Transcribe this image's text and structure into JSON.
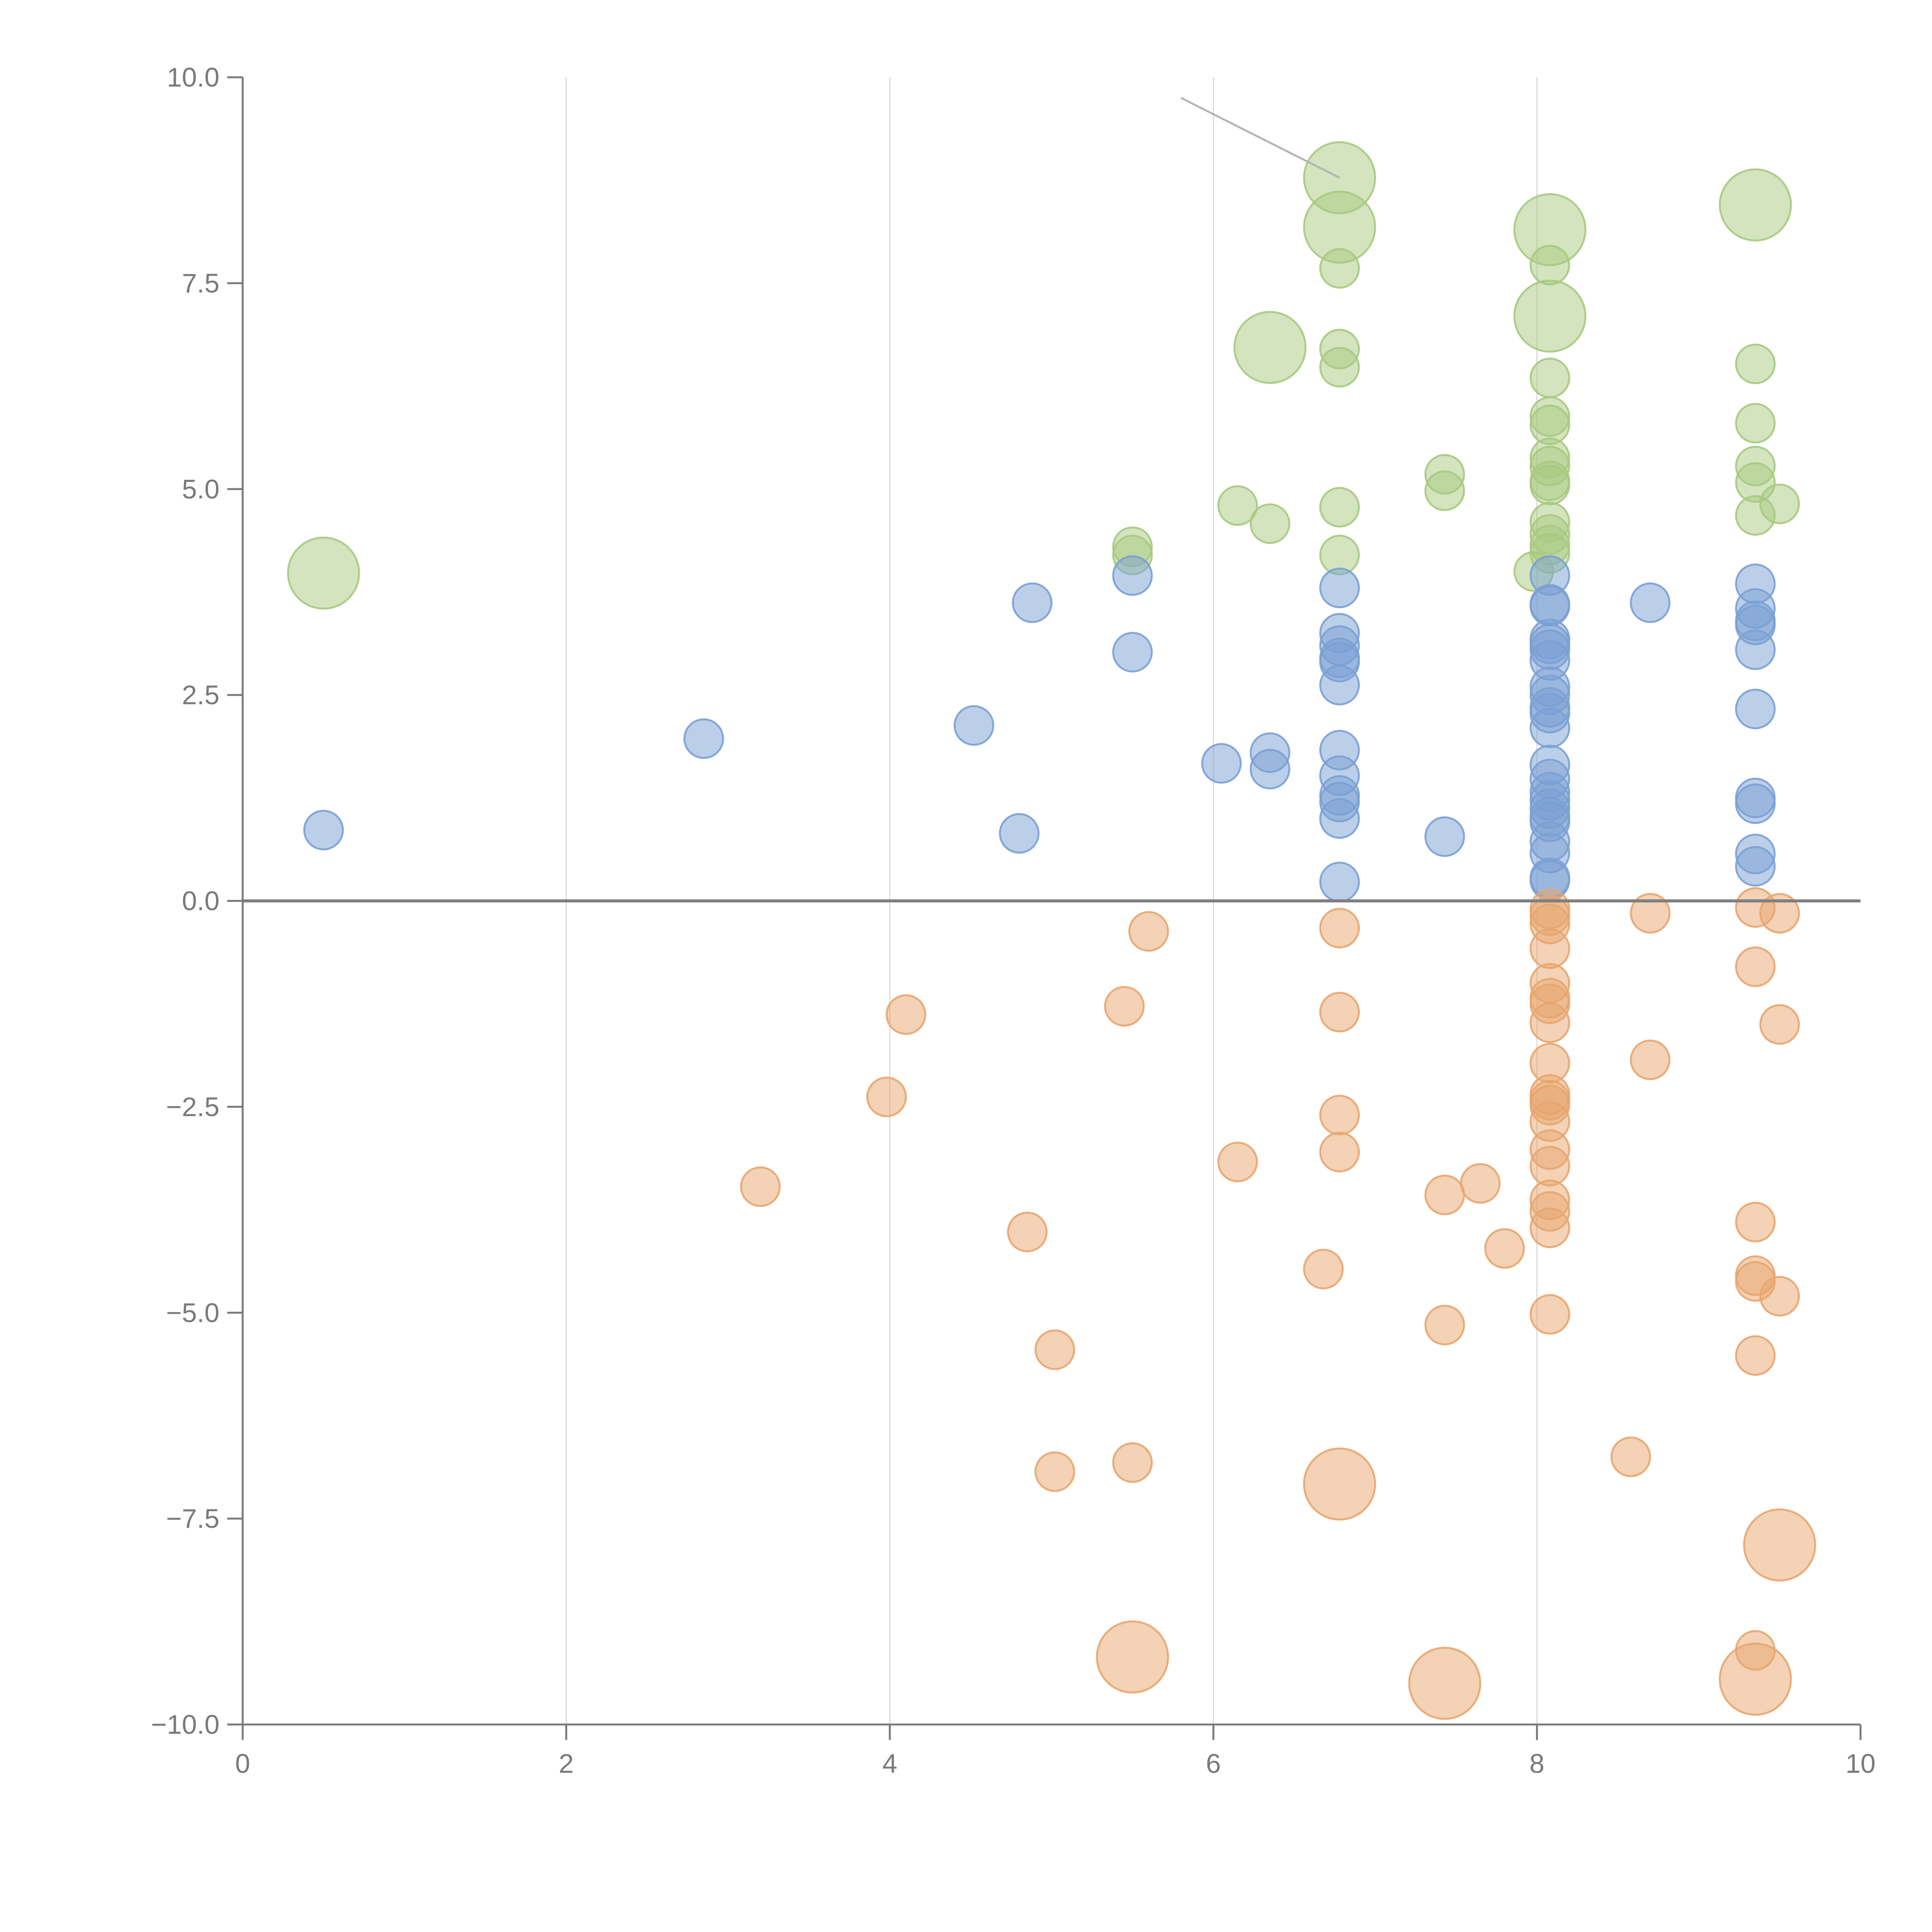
{
  "colors": {
    "green": "#a8c97f",
    "blue": "#7aa0d4",
    "orange": "#e8a56e",
    "axis": "#7a7a7a",
    "grid": "#d9d9d9",
    "zero_line": "#7f7f7f",
    "callout": "#b3b3b3"
  },
  "chart_data": {
    "type": "scatter",
    "title": "",
    "xlabel": "",
    "ylabel": "",
    "xlim": [
      0,
      10
    ],
    "ylim": [
      -10,
      10
    ],
    "x_ticks": [
      0,
      2,
      4,
      6,
      8,
      10
    ],
    "y_ticks": [
      -10,
      -7.5,
      -5,
      -2.5,
      0,
      2.5,
      5,
      7.5,
      10
    ],
    "x_tick_labels": [
      "0",
      "2",
      "4",
      "6",
      "8",
      "10"
    ],
    "y_tick_labels": [
      "−10.0",
      "−7.5",
      "−5.0",
      "−2.5",
      "0.0",
      "2.5",
      "5.0",
      "7.5",
      "10.0"
    ],
    "vertical_grid": true,
    "zero_line": 0,
    "callout_line": {
      "from": [
        5.8,
        9.75
      ],
      "to": [
        6.78,
        8.78
      ]
    },
    "series": [
      {
        "name": "green",
        "color_key": "green",
        "points": [
          [
            0.5,
            3.98,
            2
          ],
          [
            5.5,
            4.3,
            1
          ],
          [
            5.5,
            4.2,
            1
          ],
          [
            6.15,
            4.8,
            1
          ],
          [
            6.35,
            4.58,
            1
          ],
          [
            6.35,
            6.72,
            2
          ],
          [
            6.78,
            8.78,
            2
          ],
          [
            6.78,
            8.18,
            2
          ],
          [
            6.78,
            7.68,
            1
          ],
          [
            6.78,
            6.7,
            1
          ],
          [
            6.78,
            6.48,
            1
          ],
          [
            6.78,
            4.78,
            1
          ],
          [
            6.78,
            4.2,
            1
          ],
          [
            7.43,
            5.18,
            1
          ],
          [
            7.43,
            4.98,
            1
          ],
          [
            8.08,
            8.15,
            2
          ],
          [
            8.08,
            7.1,
            2
          ],
          [
            8.08,
            7.72,
            1
          ],
          [
            8.08,
            6.35,
            1
          ],
          [
            8.08,
            5.88,
            1
          ],
          [
            8.08,
            5.78,
            1
          ],
          [
            8.08,
            5.38,
            1
          ],
          [
            8.08,
            5.28,
            1
          ],
          [
            8.08,
            5.1,
            1
          ],
          [
            8.08,
            5.05,
            1
          ],
          [
            8.08,
            4.6,
            1
          ],
          [
            8.08,
            4.45,
            1
          ],
          [
            8.08,
            4.32,
            1
          ],
          [
            8.08,
            4.22,
            1
          ],
          [
            7.98,
            4.0,
            1
          ],
          [
            9.35,
            8.45,
            2
          ],
          [
            9.35,
            6.52,
            1
          ],
          [
            9.35,
            5.8,
            1
          ],
          [
            9.35,
            5.28,
            1
          ],
          [
            9.35,
            5.08,
            1
          ],
          [
            9.35,
            4.68,
            1
          ],
          [
            9.5,
            4.82,
            1
          ]
        ]
      },
      {
        "name": "blue",
        "color_key": "blue",
        "points": [
          [
            0.5,
            0.86,
            1
          ],
          [
            2.85,
            1.97,
            1
          ],
          [
            4.52,
            2.13,
            1
          ],
          [
            4.8,
            0.82,
            1
          ],
          [
            4.88,
            3.62,
            1
          ],
          [
            5.5,
            3.95,
            1
          ],
          [
            5.5,
            3.02,
            1
          ],
          [
            6.05,
            1.67,
            1
          ],
          [
            6.35,
            1.8,
            1
          ],
          [
            6.35,
            1.6,
            1
          ],
          [
            6.78,
            3.8,
            1
          ],
          [
            6.78,
            3.25,
            1
          ],
          [
            6.78,
            3.1,
            1
          ],
          [
            6.78,
            2.95,
            1
          ],
          [
            6.78,
            2.9,
            1
          ],
          [
            6.78,
            2.62,
            1
          ],
          [
            6.78,
            1.83,
            1
          ],
          [
            6.78,
            1.52,
            1
          ],
          [
            6.78,
            1.28,
            1
          ],
          [
            6.78,
            1.2,
            1
          ],
          [
            6.78,
            1.0,
            1
          ],
          [
            6.78,
            0.23,
            1
          ],
          [
            7.43,
            0.78,
            1
          ],
          [
            8.08,
            3.95,
            1
          ],
          [
            8.08,
            3.6,
            1
          ],
          [
            8.08,
            3.58,
            1
          ],
          [
            8.08,
            3.18,
            1
          ],
          [
            8.08,
            3.12,
            1
          ],
          [
            8.08,
            3.05,
            1
          ],
          [
            8.08,
            2.92,
            1
          ],
          [
            8.08,
            2.6,
            1
          ],
          [
            8.08,
            2.5,
            1
          ],
          [
            8.08,
            2.35,
            1
          ],
          [
            8.08,
            2.28,
            1
          ],
          [
            8.08,
            2.1,
            1
          ],
          [
            8.08,
            1.65,
            1
          ],
          [
            8.08,
            1.48,
            1
          ],
          [
            8.08,
            1.32,
            1
          ],
          [
            8.08,
            1.22,
            1
          ],
          [
            8.08,
            1.12,
            1
          ],
          [
            8.08,
            1.02,
            1
          ],
          [
            8.08,
            0.96,
            1
          ],
          [
            8.08,
            0.72,
            1
          ],
          [
            8.08,
            0.58,
            1
          ],
          [
            8.08,
            0.28,
            1
          ],
          [
            8.08,
            0.25,
            1
          ],
          [
            8.7,
            3.62,
            1
          ],
          [
            9.35,
            3.85,
            1
          ],
          [
            9.35,
            3.55,
            1
          ],
          [
            9.35,
            3.4,
            1
          ],
          [
            9.35,
            3.35,
            1
          ],
          [
            9.35,
            3.05,
            1
          ],
          [
            9.35,
            2.33,
            1
          ],
          [
            9.35,
            1.25,
            1
          ],
          [
            9.35,
            1.18,
            1
          ],
          [
            9.35,
            0.57,
            1
          ],
          [
            9.35,
            0.42,
            1
          ]
        ]
      },
      {
        "name": "orange",
        "color_key": "orange",
        "points": [
          [
            3.2,
            -3.47,
            1
          ],
          [
            3.98,
            -2.38,
            1
          ],
          [
            4.1,
            -1.38,
            1
          ],
          [
            4.85,
            -4.02,
            1
          ],
          [
            5.02,
            -5.45,
            1
          ],
          [
            5.02,
            -6.93,
            1
          ],
          [
            5.45,
            -1.28,
            1
          ],
          [
            5.5,
            -6.82,
            1
          ],
          [
            5.5,
            -9.18,
            2
          ],
          [
            5.6,
            -0.37,
            1
          ],
          [
            6.15,
            -3.17,
            1
          ],
          [
            6.68,
            -4.47,
            1
          ],
          [
            6.78,
            -0.33,
            1
          ],
          [
            6.78,
            -1.35,
            1
          ],
          [
            6.78,
            -2.6,
            1
          ],
          [
            6.78,
            -3.05,
            1
          ],
          [
            6.78,
            -7.08,
            2
          ],
          [
            7.43,
            -3.57,
            1
          ],
          [
            7.43,
            -5.15,
            1
          ],
          [
            7.43,
            -9.5,
            2
          ],
          [
            7.65,
            -3.43,
            1
          ],
          [
            7.8,
            -4.22,
            1
          ],
          [
            8.08,
            -0.1,
            1
          ],
          [
            8.08,
            -0.18,
            1
          ],
          [
            8.08,
            -0.28,
            1
          ],
          [
            8.08,
            -0.58,
            1
          ],
          [
            8.08,
            -1.0,
            1
          ],
          [
            8.08,
            -1.18,
            1
          ],
          [
            8.08,
            -1.25,
            1
          ],
          [
            8.08,
            -1.48,
            1
          ],
          [
            8.08,
            -1.97,
            1
          ],
          [
            8.08,
            -2.35,
            1
          ],
          [
            8.08,
            -2.42,
            1
          ],
          [
            8.08,
            -2.48,
            1
          ],
          [
            8.08,
            -2.68,
            1
          ],
          [
            8.08,
            -3.02,
            1
          ],
          [
            8.08,
            -3.22,
            1
          ],
          [
            8.08,
            -3.63,
            1
          ],
          [
            8.08,
            -3.77,
            1
          ],
          [
            8.08,
            -3.97,
            1
          ],
          [
            8.08,
            -5.02,
            1
          ],
          [
            8.58,
            -6.75,
            1
          ],
          [
            8.7,
            -0.15,
            1
          ],
          [
            8.7,
            -1.93,
            1
          ],
          [
            9.35,
            -0.08,
            1
          ],
          [
            9.35,
            -0.8,
            1
          ],
          [
            9.35,
            -3.9,
            1
          ],
          [
            9.35,
            -4.55,
            1
          ],
          [
            9.35,
            -4.62,
            1
          ],
          [
            9.35,
            -5.52,
            1
          ],
          [
            9.35,
            -9.1,
            1
          ],
          [
            9.35,
            -9.45,
            2
          ],
          [
            9.5,
            -0.15,
            1
          ],
          [
            9.5,
            -1.5,
            1
          ],
          [
            9.5,
            -4.8,
            1
          ],
          [
            9.5,
            -7.82,
            2
          ]
        ]
      }
    ]
  }
}
